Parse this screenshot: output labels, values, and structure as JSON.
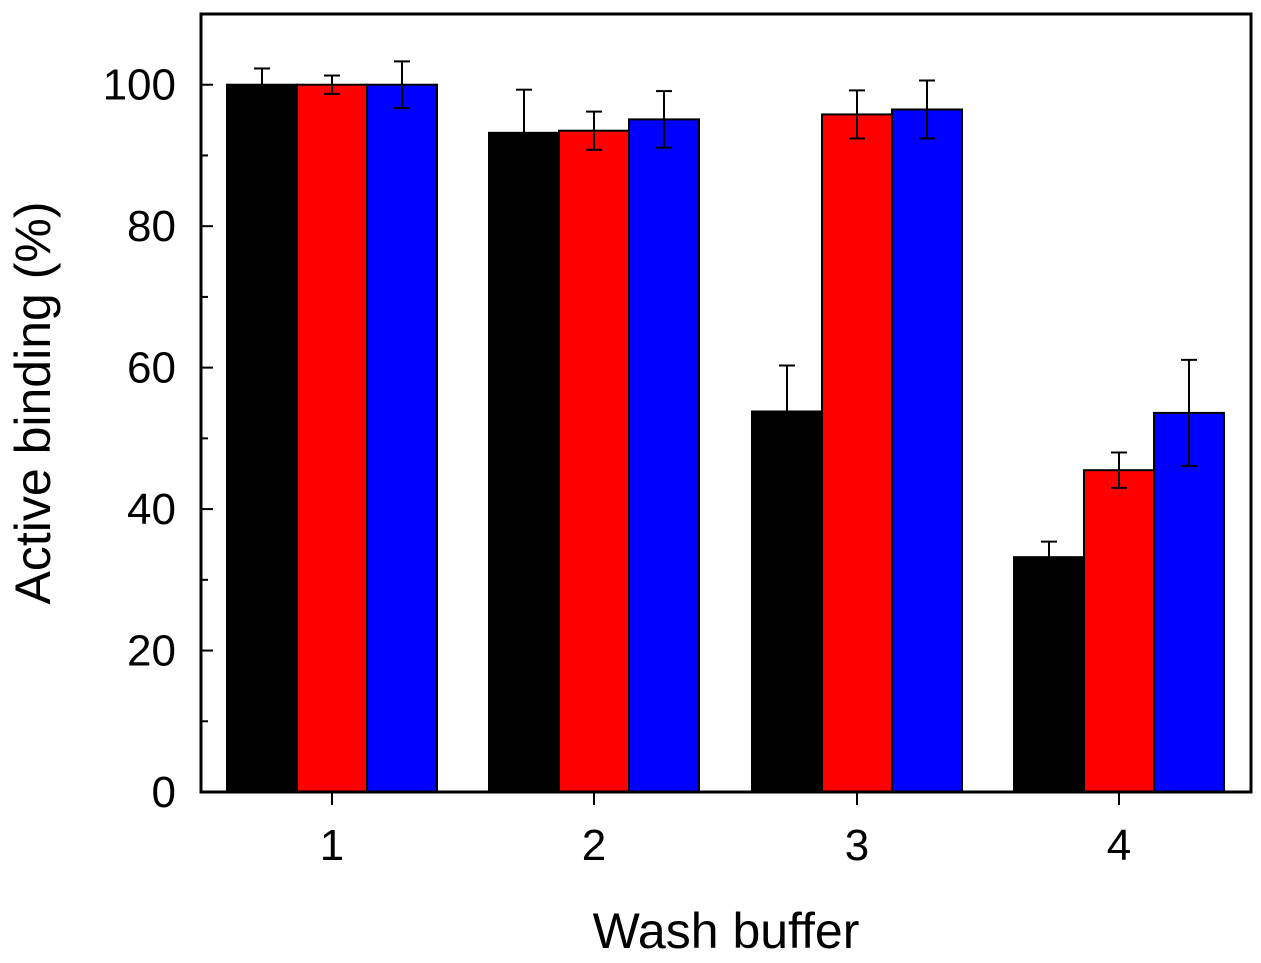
{
  "chart_data": {
    "type": "bar",
    "title": "",
    "xlabel": "Wash buffer",
    "ylabel": "Active binding (%)",
    "categories": [
      "1",
      "2",
      "3",
      "4"
    ],
    "ylim": [
      0,
      110
    ],
    "yticks": [
      0,
      20,
      40,
      60,
      80,
      100
    ],
    "grid": false,
    "legend": "none",
    "series": [
      {
        "color": "#000000",
        "values": [
          100,
          93.2,
          53.8,
          33.2
        ],
        "errors": [
          2.3,
          6.1,
          6.5,
          2.2
        ]
      },
      {
        "color": "#ff0000",
        "values": [
          100,
          93.5,
          95.8,
          45.5
        ],
        "errors": [
          1.3,
          2.7,
          3.4,
          2.5
        ]
      },
      {
        "color": "#0000ff",
        "values": [
          100,
          95.1,
          96.5,
          53.6
        ],
        "errors": [
          3.3,
          4.0,
          4.1,
          7.5
        ]
      }
    ]
  }
}
